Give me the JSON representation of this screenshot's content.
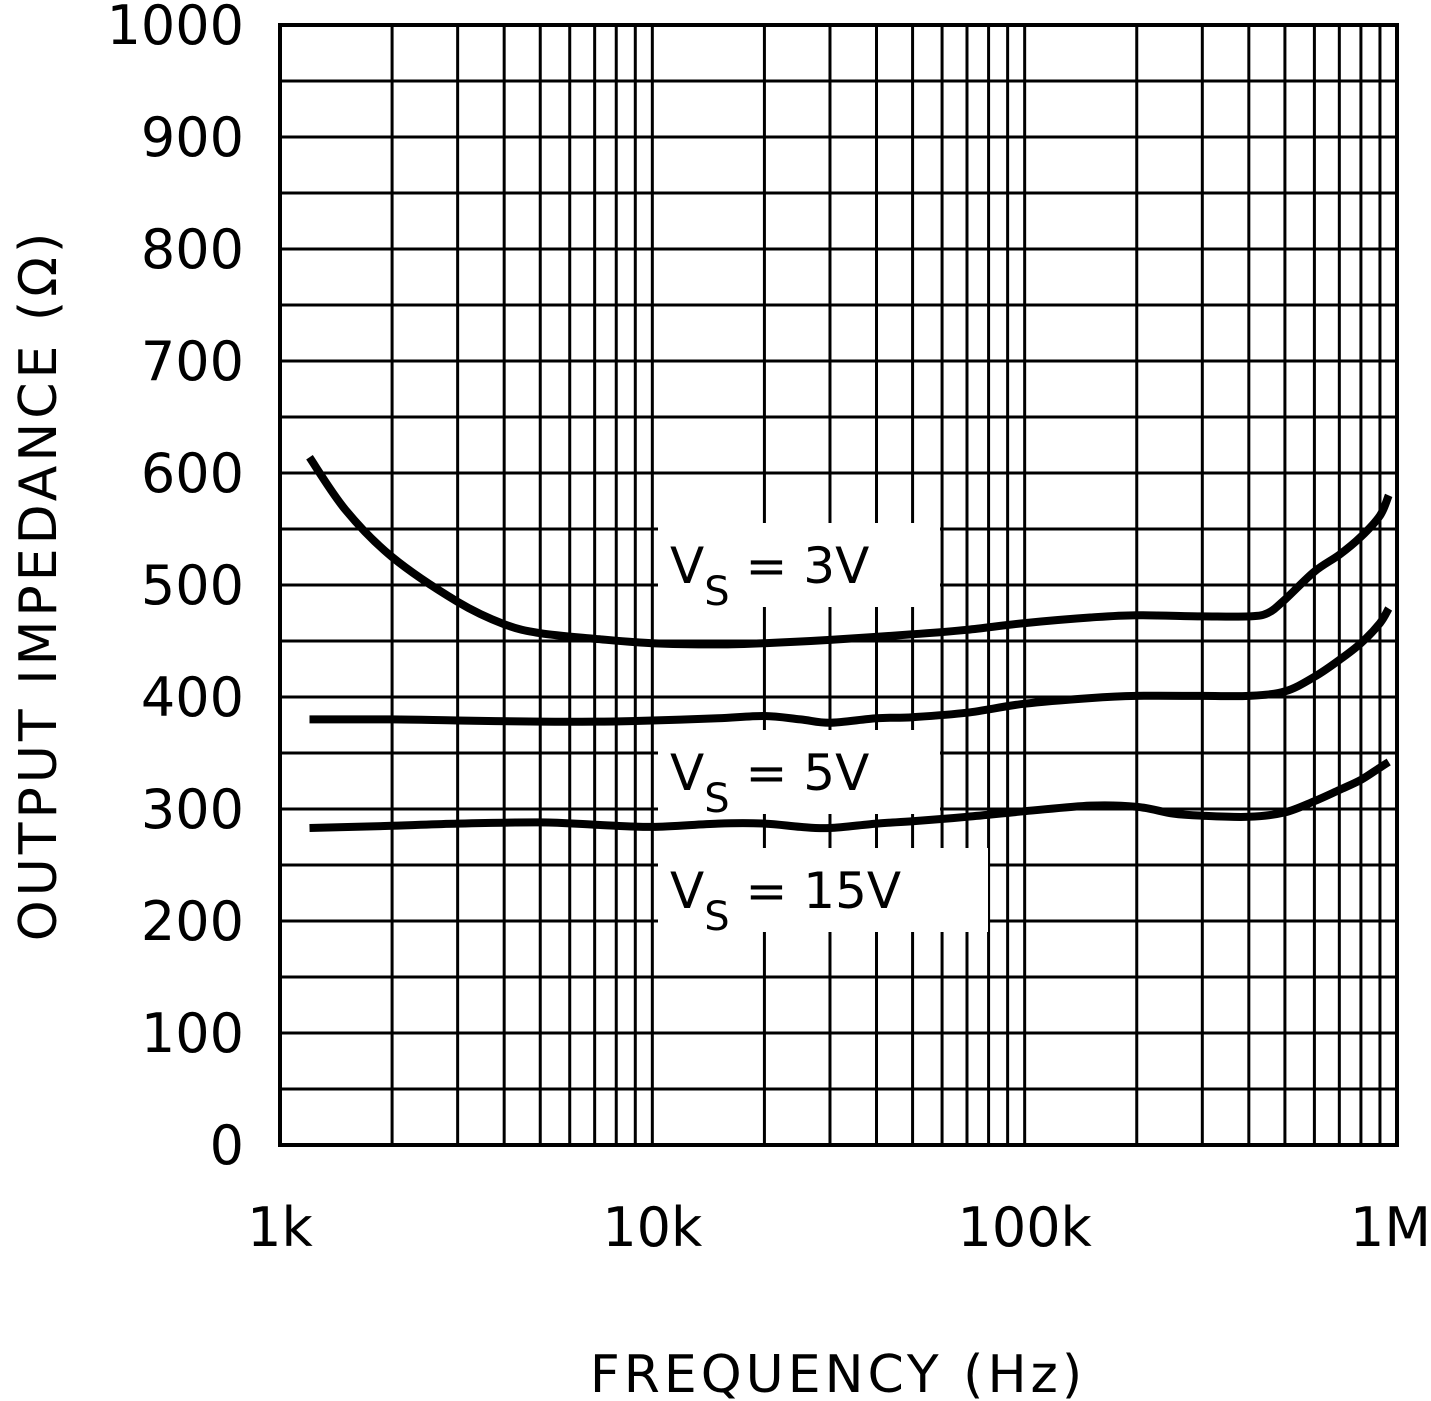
{
  "chart_data": {
    "type": "line",
    "title": "",
    "xlabel": "FREQUENCY (Hz)",
    "ylabel": "OUTPUT IMPEDANCE (Ω)",
    "xscale": "log",
    "xlim": [
      1000,
      1000000
    ],
    "ylim": [
      0,
      1000
    ],
    "grid": true,
    "x_ticks": [
      {
        "value": 1000,
        "label": "1k"
      },
      {
        "value": 10000,
        "label": "10k"
      },
      {
        "value": 100000,
        "label": "100k"
      },
      {
        "value": 1000000,
        "label": "1M"
      }
    ],
    "y_ticks": [
      {
        "value": 0,
        "label": "0"
      },
      {
        "value": 100,
        "label": "100"
      },
      {
        "value": 200,
        "label": "200"
      },
      {
        "value": 300,
        "label": "300"
      },
      {
        "value": 400,
        "label": "400"
      },
      {
        "value": 500,
        "label": "500"
      },
      {
        "value": 600,
        "label": "600"
      },
      {
        "value": 700,
        "label": "700"
      },
      {
        "value": 800,
        "label": "800"
      },
      {
        "value": 900,
        "label": "900"
      },
      {
        "value": 1000,
        "label": "1000"
      }
    ],
    "series": [
      {
        "name": "VS = 3V",
        "label": {
          "main": "V",
          "sub": "S",
          "rest": " =  3V"
        },
        "x": [
          1200,
          1500,
          2000,
          3000,
          4000,
          5000,
          7000,
          10000,
          15000,
          20000,
          30000,
          50000,
          70000,
          100000,
          150000,
          200000,
          300000,
          400000,
          450000,
          500000,
          600000,
          700000,
          800000,
          900000,
          950000
        ],
        "values": [
          614,
          567,
          525,
          485,
          465,
          457,
          452,
          448,
          447,
          448,
          451,
          456,
          460,
          466,
          471,
          473,
          472,
          472,
          475,
          487,
          512,
          527,
          543,
          562,
          580
        ]
      },
      {
        "name": "VS = 5V",
        "label": {
          "main": "V",
          "sub": "S",
          "rest": " =  5V"
        },
        "x": [
          1200,
          2000,
          3000,
          5000,
          7000,
          10000,
          15000,
          20000,
          25000,
          30000,
          40000,
          50000,
          70000,
          100000,
          150000,
          200000,
          300000,
          400000,
          500000,
          600000,
          700000,
          800000,
          900000,
          950000
        ],
        "values": [
          380,
          380,
          379,
          378,
          378,
          379,
          381,
          383,
          380,
          377,
          381,
          382,
          386,
          394,
          399,
          401,
          401,
          401,
          405,
          418,
          433,
          448,
          466,
          479
        ]
      },
      {
        "name": "VS = 15V",
        "label": {
          "main": "V",
          "sub": "S",
          "rest": " =  15V"
        },
        "x": [
          1200,
          2000,
          3000,
          5000,
          7000,
          10000,
          15000,
          20000,
          25000,
          30000,
          40000,
          50000,
          70000,
          100000,
          150000,
          200000,
          250000,
          300000,
          400000,
          500000,
          600000,
          700000,
          800000,
          900000,
          950000
        ],
        "values": [
          283,
          285,
          287,
          288,
          286,
          284,
          287,
          287,
          284,
          283,
          287,
          289,
          293,
          298,
          303,
          302,
          296,
          294,
          293,
          297,
          307,
          317,
          326,
          337,
          342
        ]
      }
    ]
  }
}
